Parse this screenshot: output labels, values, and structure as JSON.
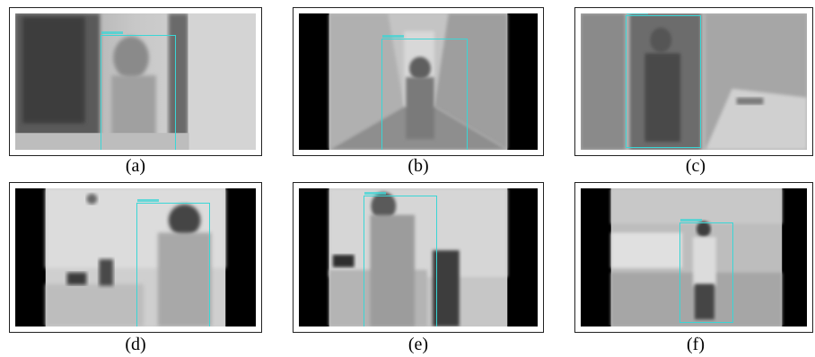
{
  "panels": [
    {
      "id": "a",
      "caption": "(a)"
    },
    {
      "id": "b",
      "caption": "(b)"
    },
    {
      "id": "c",
      "caption": "(c)"
    },
    {
      "id": "d",
      "caption": "(d)"
    },
    {
      "id": "e",
      "caption": "(e)"
    },
    {
      "id": "f",
      "caption": "(f)"
    }
  ],
  "colors": {
    "bbox": "#3ad6d6",
    "letterbox": "#000000",
    "panel_border": "#222222"
  }
}
